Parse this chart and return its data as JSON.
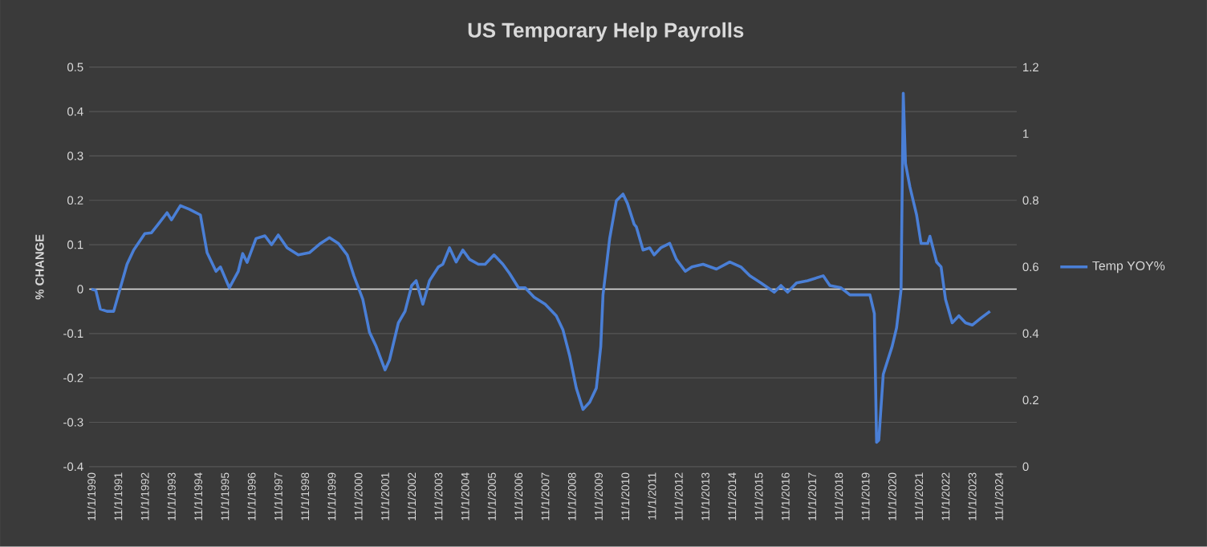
{
  "chart_data": {
    "type": "line",
    "title": "US Temporary Help Payrolls",
    "ylabel": "% CHANGE",
    "x": [
      "1990-11",
      "1991-01",
      "1991-03",
      "1991-06",
      "1991-09",
      "1991-12",
      "1992-03",
      "1992-06",
      "1992-11",
      "1993-02",
      "1993-05",
      "1993-09",
      "1993-11",
      "1994-03",
      "1994-07",
      "1994-12",
      "1995-03",
      "1995-07",
      "1995-09",
      "1996-01",
      "1996-05",
      "1996-07",
      "1996-09",
      "1997-01",
      "1997-05",
      "1997-08",
      "1997-11",
      "1998-03",
      "1998-08",
      "1999-01",
      "1999-06",
      "1999-10",
      "2000-02",
      "2000-06",
      "2000-09",
      "2001-01",
      "2001-04",
      "2001-07",
      "2001-11",
      "2002-01",
      "2002-05",
      "2002-08",
      "2002-11",
      "2003-01",
      "2003-04",
      "2003-07",
      "2003-11",
      "2004-01",
      "2004-04",
      "2004-07",
      "2004-10",
      "2005-01",
      "2005-05",
      "2005-08",
      "2005-12",
      "2006-04",
      "2006-07",
      "2006-11",
      "2007-02",
      "2007-06",
      "2007-11",
      "2008-04",
      "2008-07",
      "2008-10",
      "2009-01",
      "2009-04",
      "2009-07",
      "2009-10",
      "2009-12",
      "2010-01",
      "2010-04",
      "2010-07",
      "2010-10",
      "2010-12",
      "2011-03",
      "2011-04",
      "2011-07",
      "2011-10",
      "2011-12",
      "2012-03",
      "2012-07",
      "2012-10",
      "2013-02",
      "2013-05",
      "2013-10",
      "2014-04",
      "2014-10",
      "2015-03",
      "2015-07",
      "2015-12",
      "2016-06",
      "2016-09",
      "2016-12",
      "2017-04",
      "2017-09",
      "2018-04",
      "2018-07",
      "2018-12",
      "2019-04",
      "2019-10",
      "2020-01",
      "2020-03",
      "2020-04",
      "2020-05",
      "2020-07",
      "2020-11",
      "2021-01",
      "2021-03",
      "2021-04",
      "2021-05",
      "2021-07",
      "2021-10",
      "2021-12",
      "2022-03",
      "2022-04",
      "2022-07",
      "2022-09",
      "2022-11",
      "2023-02",
      "2023-05",
      "2023-08",
      "2023-11",
      "2024-03",
      "2024-07"
    ],
    "series": [
      {
        "name": "Temp YOY%",
        "color": "#4a7fd6",
        "values": [
          0.0,
          -0.003,
          -0.045,
          -0.05,
          -0.05,
          0.003,
          0.056,
          0.088,
          0.125,
          0.127,
          0.146,
          0.172,
          0.156,
          0.188,
          0.18,
          0.167,
          0.082,
          0.04,
          0.05,
          0.003,
          0.04,
          0.08,
          0.06,
          0.114,
          0.12,
          0.1,
          0.122,
          0.093,
          0.077,
          0.082,
          0.103,
          0.116,
          0.103,
          0.077,
          0.03,
          -0.023,
          -0.097,
          -0.129,
          -0.182,
          -0.16,
          -0.076,
          -0.05,
          0.008,
          0.019,
          -0.034,
          0.019,
          0.05,
          0.056,
          0.093,
          0.061,
          0.088,
          0.067,
          0.056,
          0.056,
          0.077,
          0.056,
          0.035,
          0.003,
          0.003,
          -0.018,
          -0.034,
          -0.06,
          -0.092,
          -0.15,
          -0.223,
          -0.271,
          -0.255,
          -0.223,
          -0.129,
          -0.013,
          0.114,
          0.199,
          0.214,
          0.193,
          0.146,
          0.14,
          0.088,
          0.093,
          0.077,
          0.093,
          0.103,
          0.067,
          0.04,
          0.05,
          0.056,
          0.045,
          0.061,
          0.05,
          0.03,
          0.014,
          -0.007,
          0.008,
          -0.007,
          0.014,
          0.019,
          0.03,
          0.008,
          0.003,
          -0.013,
          -0.013,
          -0.013,
          -0.055,
          -0.345,
          -0.34,
          -0.192,
          -0.129,
          -0.087,
          -0.002,
          0.441,
          0.283,
          0.23,
          0.167,
          0.103,
          0.103,
          0.119,
          0.061,
          0.05,
          -0.023,
          -0.076,
          -0.06,
          -0.076,
          -0.081,
          -0.065,
          -0.05
        ]
      }
    ],
    "xlim": [
      "1990-10",
      "2025-07"
    ],
    "xticks": [
      {
        "value": "1990-11",
        "label": "11/1/1990"
      },
      {
        "value": "1991-11",
        "label": "11/1/1991"
      },
      {
        "value": "1992-11",
        "label": "11/1/1992"
      },
      {
        "value": "1993-11",
        "label": "11/1/1993"
      },
      {
        "value": "1994-11",
        "label": "11/1/1994"
      },
      {
        "value": "1995-11",
        "label": "11/1/1995"
      },
      {
        "value": "1996-11",
        "label": "11/1/1996"
      },
      {
        "value": "1997-11",
        "label": "11/1/1997"
      },
      {
        "value": "1998-11",
        "label": "11/1/1998"
      },
      {
        "value": "1999-11",
        "label": "11/1/1999"
      },
      {
        "value": "2000-11",
        "label": "11/1/2000"
      },
      {
        "value": "2001-11",
        "label": "11/1/2001"
      },
      {
        "value": "2002-11",
        "label": "11/1/2002"
      },
      {
        "value": "2003-11",
        "label": "11/1/2003"
      },
      {
        "value": "2004-11",
        "label": "11/1/2004"
      },
      {
        "value": "2005-11",
        "label": "11/1/2005"
      },
      {
        "value": "2006-11",
        "label": "11/1/2006"
      },
      {
        "value": "2007-11",
        "label": "11/1/2007"
      },
      {
        "value": "2008-11",
        "label": "11/1/2008"
      },
      {
        "value": "2009-11",
        "label": "11/1/2009"
      },
      {
        "value": "2010-11",
        "label": "11/1/2010"
      },
      {
        "value": "2011-11",
        "label": "11/1/2011"
      },
      {
        "value": "2012-11",
        "label": "11/1/2012"
      },
      {
        "value": "2013-11",
        "label": "11/1/2013"
      },
      {
        "value": "2014-11",
        "label": "11/1/2014"
      },
      {
        "value": "2015-11",
        "label": "11/1/2015"
      },
      {
        "value": "2016-11",
        "label": "11/1/2016"
      },
      {
        "value": "2017-11",
        "label": "11/1/2017"
      },
      {
        "value": "2018-11",
        "label": "11/1/2018"
      },
      {
        "value": "2019-11",
        "label": "11/1/2019"
      },
      {
        "value": "2020-11",
        "label": "11/1/2020"
      },
      {
        "value": "2021-11",
        "label": "11/1/2021"
      },
      {
        "value": "2022-11",
        "label": "11/1/2022"
      },
      {
        "value": "2023-11",
        "label": "11/1/2023"
      },
      {
        "value": "2024-11",
        "label": "11/1/2024"
      }
    ],
    "ylim": [
      -0.4,
      0.5
    ],
    "yticks": [
      -0.4,
      -0.3,
      -0.2,
      -0.1,
      0,
      0.1,
      0.2,
      0.3,
      0.4,
      0.5
    ],
    "y2lim": [
      0,
      1.2
    ],
    "y2ticks": [
      0,
      0.2,
      0.4,
      0.6,
      0.8,
      1,
      1.2
    ],
    "grid": "y",
    "legend": "right",
    "marker": "none",
    "line_style": "solid"
  }
}
